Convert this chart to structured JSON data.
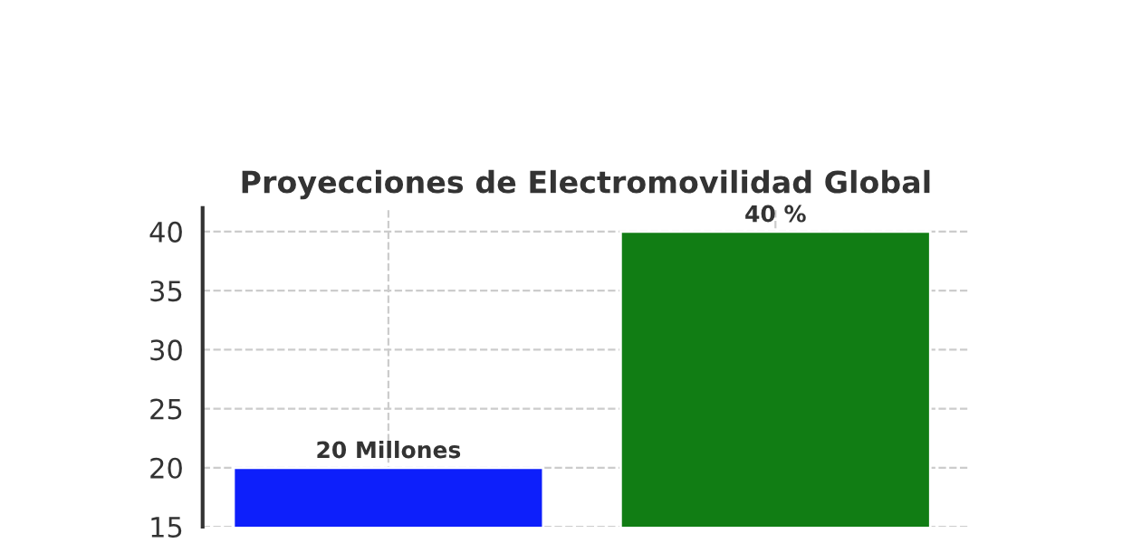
{
  "chart_data": {
    "type": "bar",
    "title": "Proyecciones de Electromovilidad Global",
    "categories": [
      null,
      null
    ],
    "values": [
      20,
      40
    ],
    "colors": [
      "#0d1ffb",
      "#117d14"
    ],
    "value_labels": [
      "20 Millones",
      "40 %"
    ],
    "ylim": [
      15,
      42
    ],
    "yticks": [
      15,
      20,
      25,
      30,
      35,
      40
    ],
    "grid": true
  }
}
